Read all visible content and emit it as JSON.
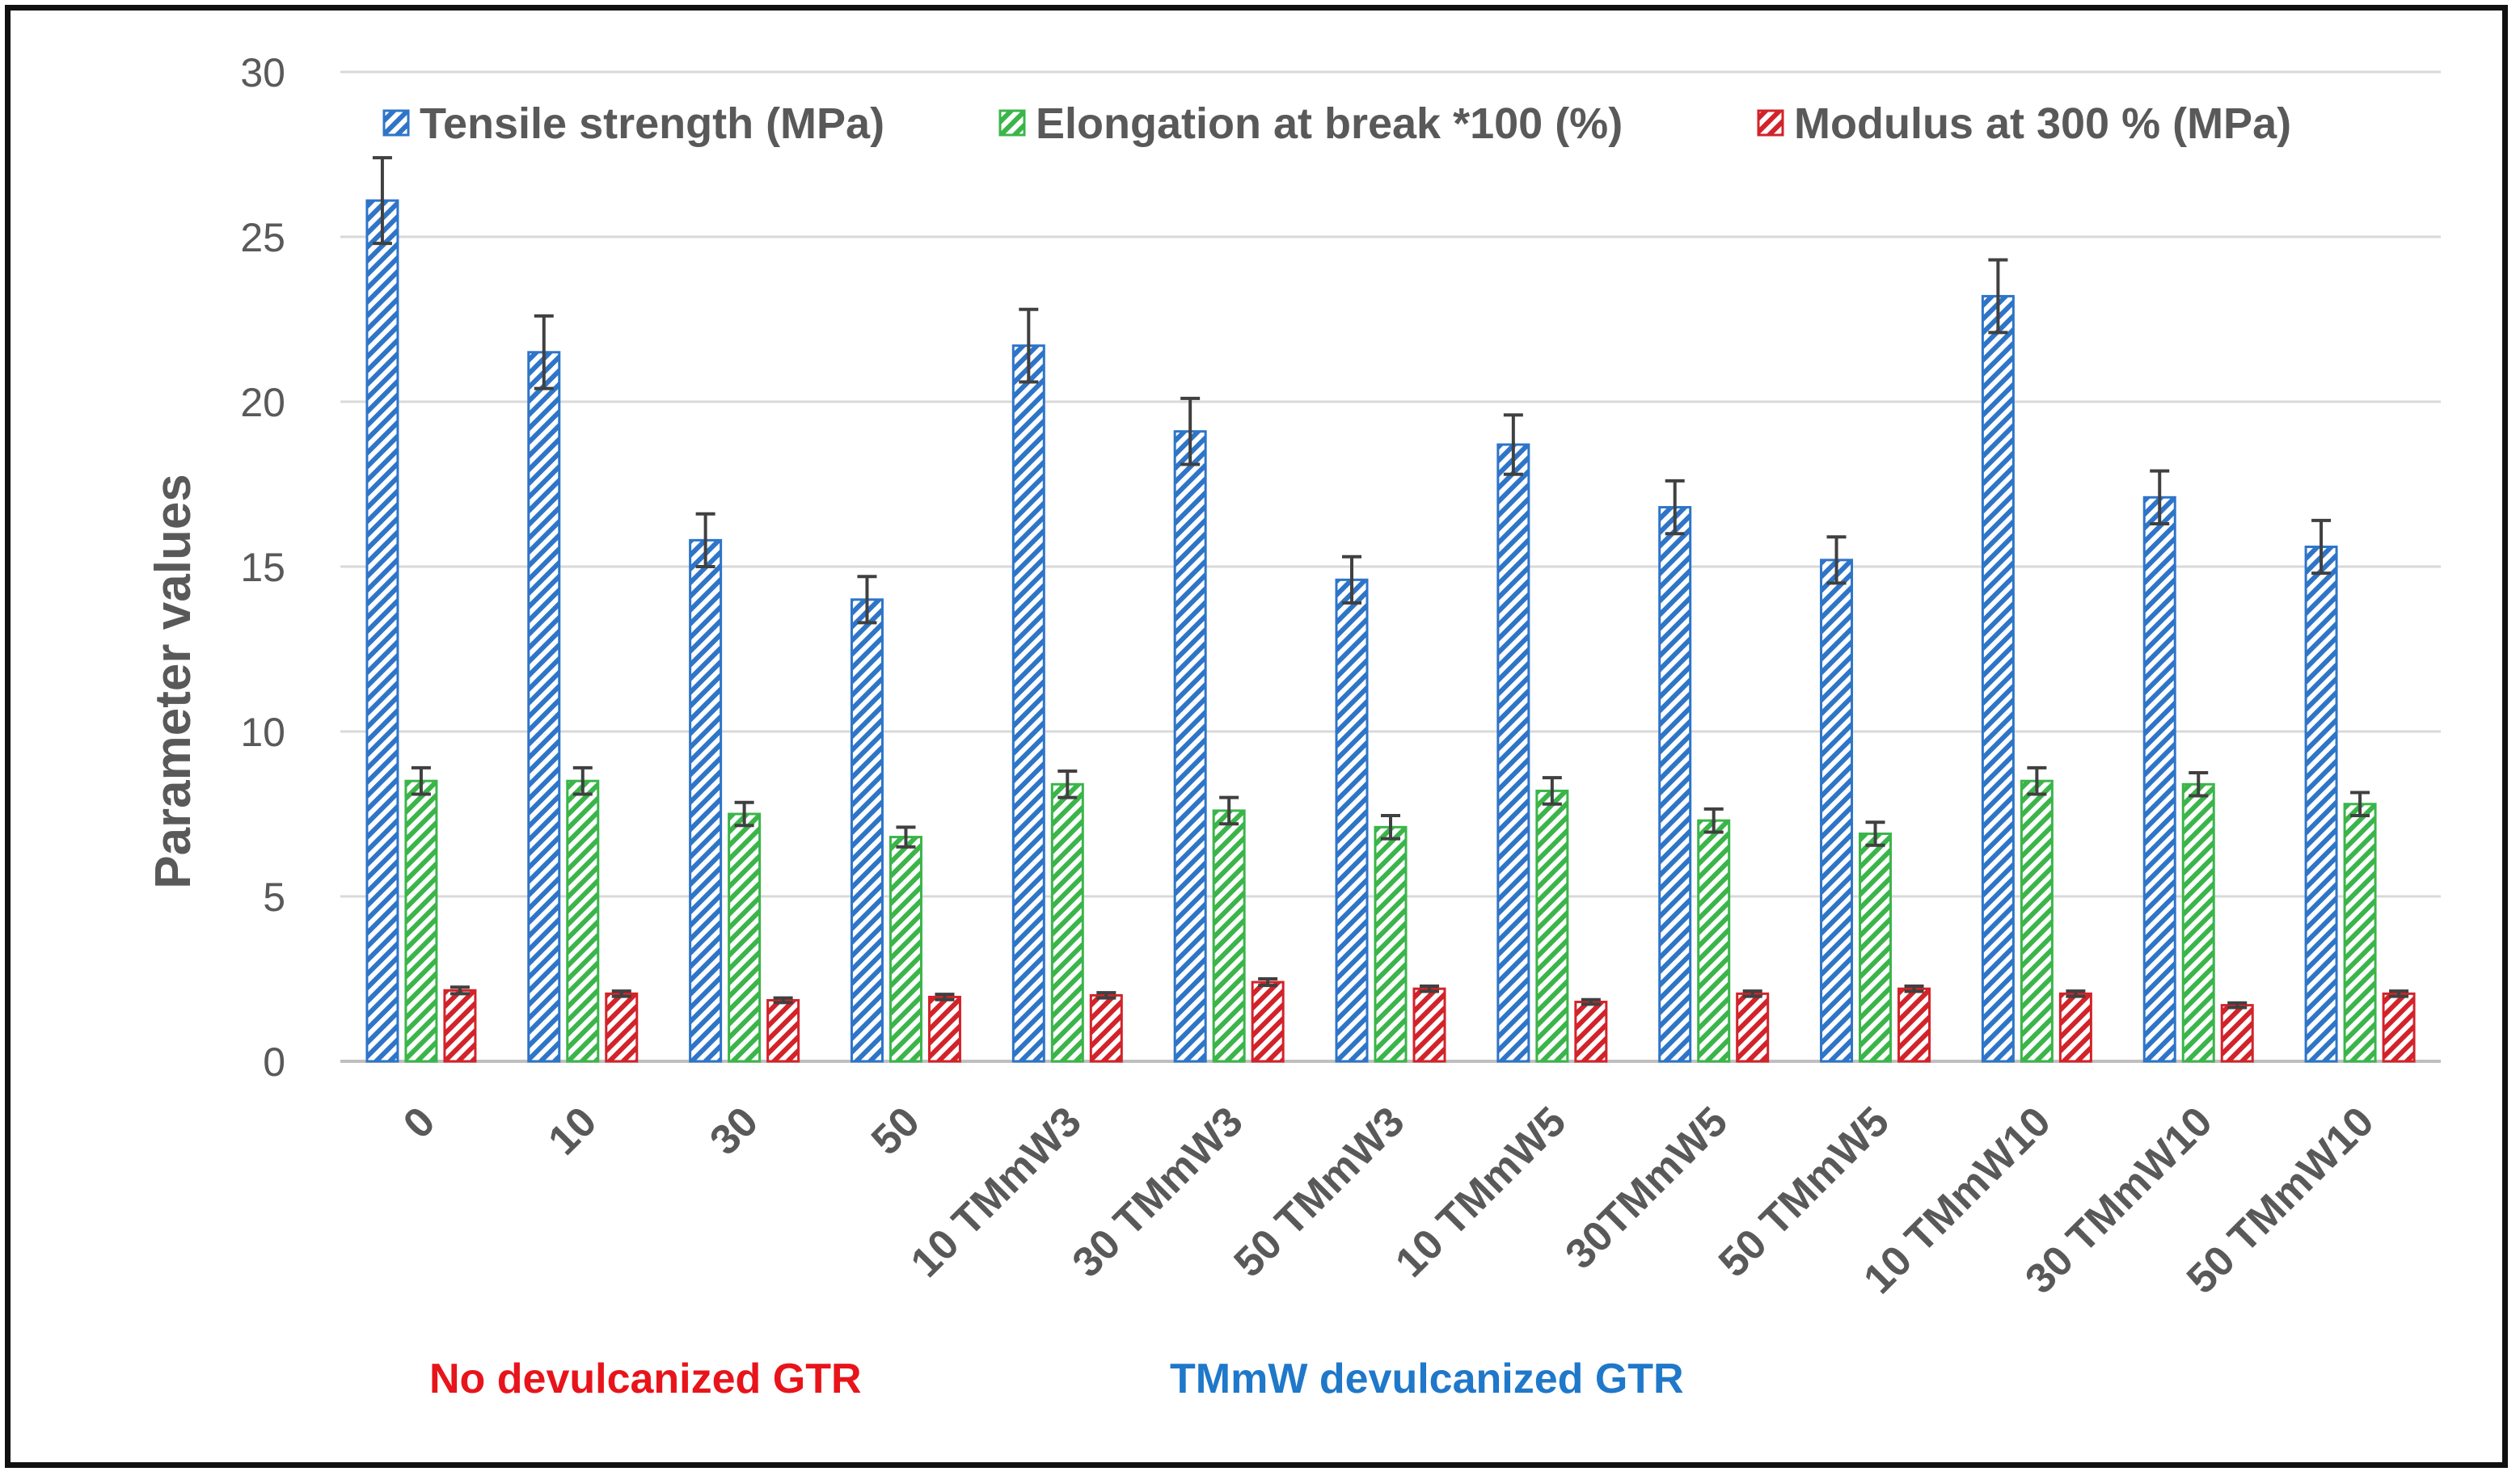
{
  "chart_data": {
    "type": "bar",
    "title": "",
    "xlabel": "",
    "ylabel": "Parameter values",
    "ylim": [
      0,
      30
    ],
    "yticks": [
      0,
      5,
      10,
      15,
      20,
      25,
      30
    ],
    "grid": true,
    "legend_position": "top",
    "categories": [
      "0",
      "10",
      "30",
      "50",
      "10 TMmW3",
      "30 TMmW3",
      "50 TMmW3",
      "10 TMmW5",
      "30TMmW5",
      "50 TMmW5",
      "10 TMmW10",
      "30 TMmW10",
      "50 TMmW10"
    ],
    "series": [
      {
        "name": "Tensile strength (MPa)",
        "color": "#2E75C8",
        "values": [
          26.1,
          21.5,
          15.8,
          14.0,
          21.7,
          19.1,
          14.6,
          18.7,
          16.8,
          15.2,
          23.2,
          17.1,
          15.6
        ],
        "errors": [
          1.3,
          1.1,
          0.8,
          0.7,
          1.1,
          1.0,
          0.7,
          0.9,
          0.8,
          0.7,
          1.1,
          0.8,
          0.8
        ]
      },
      {
        "name": "Elongation at break *100 (%)",
        "color": "#3BB54A",
        "values": [
          8.5,
          8.5,
          7.5,
          6.8,
          8.4,
          7.6,
          7.1,
          8.2,
          7.3,
          6.9,
          8.5,
          8.4,
          7.8
        ],
        "errors": [
          0.4,
          0.4,
          0.35,
          0.3,
          0.4,
          0.4,
          0.35,
          0.4,
          0.35,
          0.35,
          0.4,
          0.35,
          0.35
        ]
      },
      {
        "name": "Modulus at 300 % (MPa)",
        "color": "#D2232A",
        "values": [
          2.15,
          2.05,
          1.85,
          1.95,
          2.0,
          2.4,
          2.2,
          1.8,
          2.05,
          2.2,
          2.05,
          1.7,
          2.05
        ],
        "errors": [
          0.1,
          0.08,
          0.07,
          0.08,
          0.08,
          0.1,
          0.08,
          0.07,
          0.08,
          0.08,
          0.08,
          0.07,
          0.08
        ]
      }
    ],
    "annotations": [
      {
        "text": "No devulcanized GTR",
        "color": "#E8141B"
      },
      {
        "text": "TMmW devulcanized GTR",
        "color": "#1F78C9"
      }
    ]
  }
}
